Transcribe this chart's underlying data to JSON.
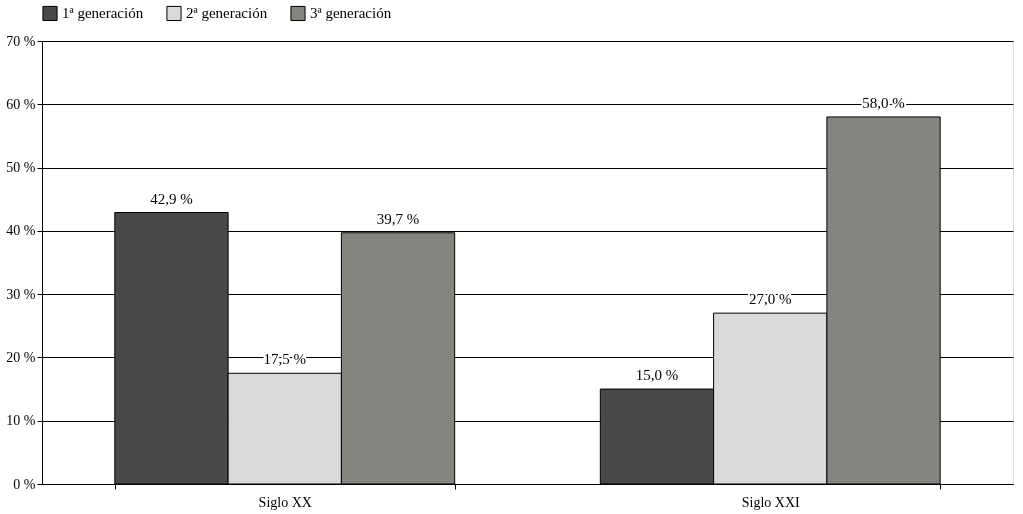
{
  "chart_data": {
    "type": "bar",
    "categories": [
      "Siglo XX",
      "Siglo XXI"
    ],
    "series": [
      {
        "name": "1ª generación",
        "color": "#494949",
        "values": [
          42.9,
          15.0
        ],
        "value_labels": [
          "42,9 %",
          "15,0 %"
        ]
      },
      {
        "name": "2ª generación",
        "color": "#d9d9d9",
        "values": [
          17.5,
          27.0
        ],
        "value_labels": [
          "17,5 %",
          "27,0 %"
        ]
      },
      {
        "name": "3ª generación",
        "color": "#85857f",
        "values": [
          39.7,
          58.0
        ],
        "value_labels": [
          "39,7 %",
          "58,0 %"
        ]
      }
    ],
    "ylim": [
      0,
      70
    ],
    "yticks": [
      {
        "value": 0,
        "label": "0 %"
      },
      {
        "value": 10,
        "label": "10 %"
      },
      {
        "value": 20,
        "label": "20 %"
      },
      {
        "value": 30,
        "label": "30 %"
      },
      {
        "value": 40,
        "label": "40 %"
      },
      {
        "value": 50,
        "label": "50 %"
      },
      {
        "value": 60,
        "label": "60 %"
      },
      {
        "value": 70,
        "label": "70 %"
      }
    ],
    "grid": "y",
    "legend": "top"
  }
}
